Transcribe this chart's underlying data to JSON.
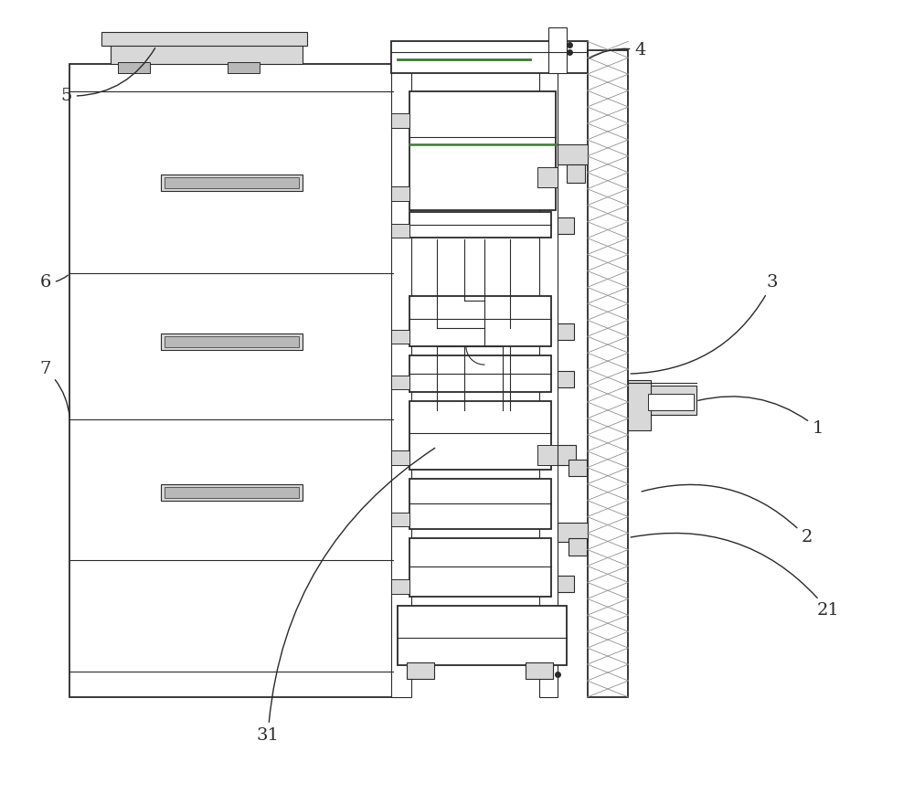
{
  "bg_color": "#ffffff",
  "line_color": "#2a2a2a",
  "fig_width": 10.0,
  "fig_height": 8.69,
  "green_color": "#3a7a30",
  "gray_light": "#d8d8d8",
  "gray_med": "#b8b8b8",
  "hatch_gray": "#888888"
}
